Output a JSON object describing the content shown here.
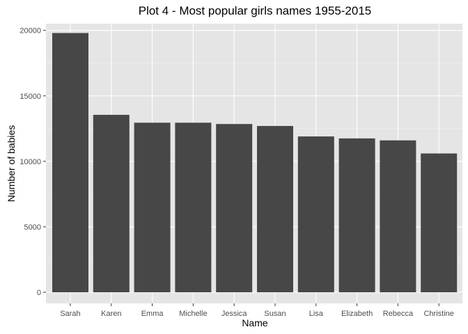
{
  "chart_data": {
    "type": "bar",
    "title": "Plot 4 - Most popular girls names 1955-2015",
    "xlabel": "Name",
    "ylabel": "Number of babies",
    "categories": [
      "Sarah",
      "Karen",
      "Emma",
      "Michelle",
      "Jessica",
      "Susan",
      "Lisa",
      "Elizabeth",
      "Rebecca",
      "Christine"
    ],
    "values": [
      19800,
      13550,
      12950,
      12950,
      12850,
      12700,
      11900,
      11750,
      11600,
      10600
    ],
    "ylim": [
      0,
      20800
    ],
    "yticks": [
      0,
      5000,
      10000,
      15000,
      20000
    ],
    "ytick_labels": [
      "0",
      "5000",
      "10000",
      "15000",
      "20000"
    ],
    "grid": true,
    "legend": "none",
    "colors": {
      "bar": "#474747",
      "panel_background": "#e5e5e5",
      "grid_major": "#ffffff",
      "grid_minor": "#f2f2f2",
      "tick_text": "#4d4d4d",
      "tick_mark": "#333333"
    }
  }
}
